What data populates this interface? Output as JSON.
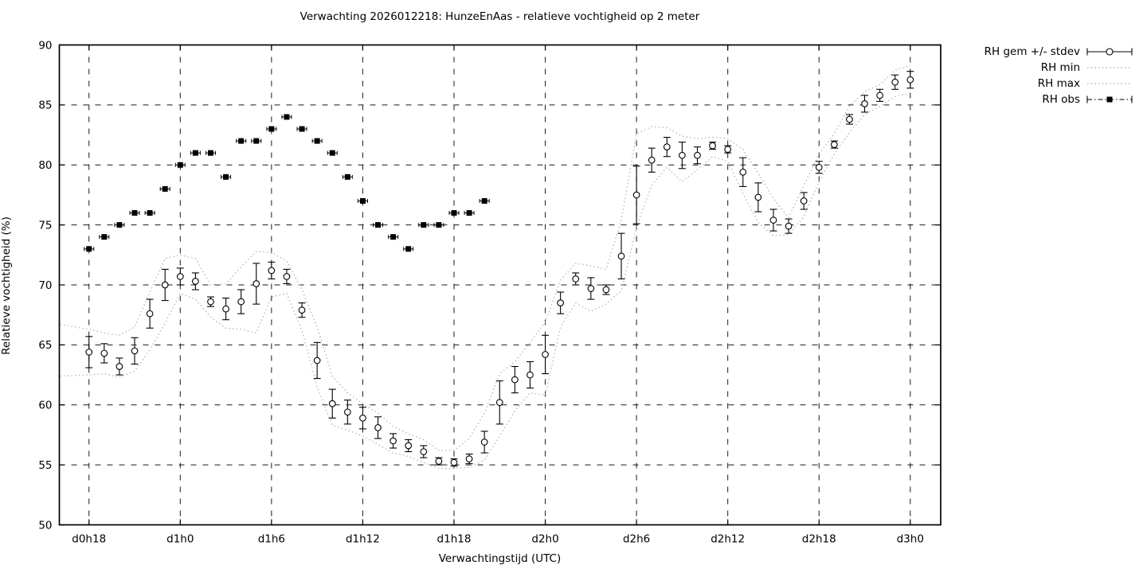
{
  "chart_data": {
    "type": "line",
    "title": "Verwachting 2026012218: HunzeEnAas - relatieve vochtigheid op 2 meter",
    "xlabel": "Verwachtingstijd (UTC)",
    "ylabel": "Relatieve vochtigheid (%)",
    "ylim": [
      50,
      90
    ],
    "yticks": [
      50,
      55,
      60,
      65,
      70,
      75,
      80,
      85,
      90
    ],
    "xlim_hours": [
      -1.95,
      56.0
    ],
    "x_ticks": [
      {
        "hour": 0,
        "label": "d0h18"
      },
      {
        "hour": 6,
        "label": "d1h0"
      },
      {
        "hour": 12,
        "label": "d1h6"
      },
      {
        "hour": 18,
        "label": "d1h12"
      },
      {
        "hour": 24,
        "label": "d1h18"
      },
      {
        "hour": 30,
        "label": "d2h0"
      },
      {
        "hour": 36,
        "label": "d2h6"
      },
      {
        "hour": 42,
        "label": "d2h12"
      },
      {
        "hour": 48,
        "label": "d2h18"
      },
      {
        "hour": 54,
        "label": "d3h0"
      }
    ],
    "grid": true,
    "legend_position": "top-right-outside",
    "colors": {
      "axis": "#000000",
      "grid": "#000000",
      "envelope": "#b4b4b4",
      "marker": "#000000"
    },
    "envelope_left_edge": {
      "hour": -1.9,
      "min": 62.4,
      "max": 66.7
    },
    "series": [
      {
        "name": "RH gem +/- stdev",
        "style": "errorbar-open-circle",
        "start_hour": 0,
        "step_hours": 1,
        "values": [
          64.4,
          64.3,
          63.2,
          64.5,
          67.6,
          70.0,
          70.7,
          70.3,
          68.6,
          68.0,
          68.6,
          70.1,
          71.2,
          70.7,
          67.9,
          63.7,
          60.1,
          59.4,
          58.9,
          58.1,
          57.0,
          56.6,
          56.1,
          55.3,
          55.2,
          55.5,
          56.9,
          60.2,
          62.1,
          62.5,
          64.2,
          68.5,
          70.5,
          69.7,
          69.6,
          72.4,
          77.5,
          80.4,
          81.5,
          80.8,
          80.8,
          81.6,
          81.3,
          79.4,
          77.3,
          75.4,
          74.9,
          77.0,
          79.8,
          81.7,
          83.8,
          85.1,
          85.8,
          86.9,
          87.1
        ],
        "stdev": [
          1.3,
          0.8,
          0.7,
          1.1,
          1.2,
          1.3,
          0.7,
          0.7,
          0.4,
          0.9,
          1.0,
          1.7,
          0.7,
          0.6,
          0.6,
          1.5,
          1.2,
          1.0,
          0.9,
          0.9,
          0.6,
          0.5,
          0.5,
          0.3,
          0.3,
          0.4,
          0.9,
          1.8,
          1.1,
          1.1,
          1.6,
          0.9,
          0.5,
          0.9,
          0.4,
          1.9,
          2.4,
          1.0,
          0.8,
          1.1,
          0.7,
          0.3,
          0.3,
          1.2,
          1.2,
          0.9,
          0.6,
          0.7,
          0.5,
          0.3,
          0.4,
          0.7,
          0.5,
          0.6,
          0.7
        ]
      },
      {
        "name": "RH min",
        "style": "dotted-line",
        "start_hour": 0,
        "step_hours": 1,
        "values": [
          62.5,
          62.6,
          62.3,
          62.8,
          64.6,
          66.8,
          69.3,
          68.8,
          67.3,
          66.4,
          66.3,
          66.0,
          69.0,
          69.3,
          66.2,
          61.5,
          58.3,
          57.9,
          57.4,
          56.7,
          56.0,
          55.7,
          55.2,
          54.7,
          54.7,
          54.8,
          55.4,
          57.4,
          59.5,
          61.0,
          60.8,
          66.5,
          68.5,
          67.8,
          68.4,
          69.5,
          74.8,
          78.3,
          79.8,
          78.6,
          79.6,
          80.7,
          80.3,
          77.6,
          75.2,
          74.1,
          74.2,
          75.7,
          78.6,
          80.9,
          82.7,
          84.2,
          84.9,
          85.7,
          86.0
        ]
      },
      {
        "name": "RH max",
        "style": "dotted-line",
        "start_hour": 0,
        "step_hours": 1,
        "values": [
          66.3,
          66.0,
          65.8,
          66.5,
          69.4,
          72.2,
          72.5,
          72.2,
          70.0,
          70.1,
          71.5,
          72.8,
          72.7,
          72.0,
          69.6,
          66.5,
          62.4,
          61.0,
          60.1,
          59.3,
          58.2,
          57.6,
          57.1,
          56.2,
          56.2,
          57.2,
          59.3,
          62.6,
          63.6,
          65.2,
          66.9,
          70.4,
          71.8,
          71.6,
          71.3,
          75.4,
          82.6,
          83.2,
          83.1,
          82.4,
          82.2,
          82.3,
          82.2,
          81.3,
          79.3,
          77.2,
          75.6,
          78.3,
          80.9,
          82.6,
          84.9,
          86.1,
          86.7,
          87.9,
          88.3
        ]
      },
      {
        "name": "RH obs",
        "style": "filled-square",
        "start_hour": 0,
        "step_hours": 1,
        "values": [
          73,
          74,
          75,
          76,
          76,
          78,
          80,
          81,
          81,
          79,
          82,
          82,
          83,
          84,
          83,
          82,
          81,
          79,
          77,
          75,
          74,
          73,
          75,
          75,
          76,
          76,
          77
        ]
      }
    ]
  },
  "legend": {
    "items": [
      {
        "label": "RH gem +/- stdev",
        "sample": "errorbar-circle"
      },
      {
        "label": "RH min",
        "sample": "dotted"
      },
      {
        "label": "RH max",
        "sample": "dotted"
      },
      {
        "label": "RH obs",
        "sample": "dashdot-square"
      }
    ]
  }
}
